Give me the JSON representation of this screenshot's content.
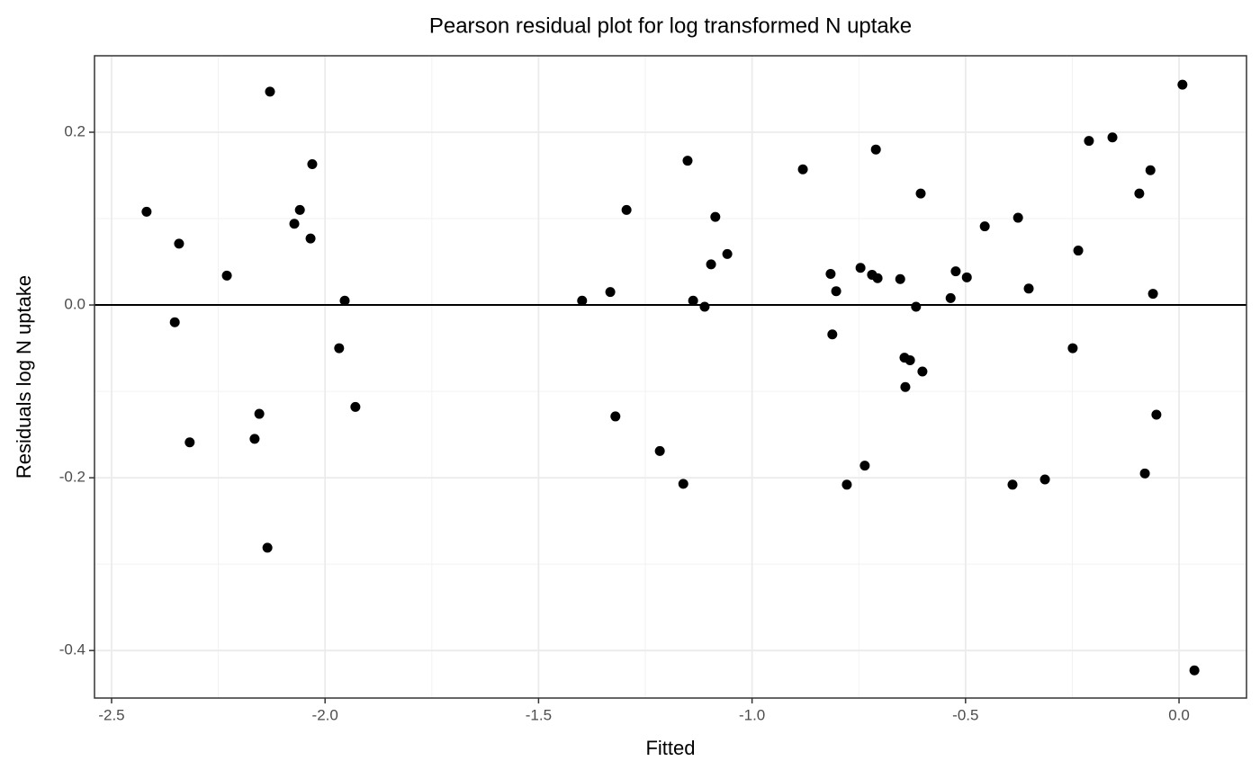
{
  "chart_data": {
    "type": "scatter",
    "title": "Pearson residual plot for log transformed N uptake",
    "x_label": "Fitted",
    "y_label": "Residuals log N uptake",
    "color": "#000000",
    "grid": true,
    "hline": 0,
    "xlim": [
      -2.54,
      0.158
    ],
    "ylim": [
      -0.455,
      0.2885
    ],
    "xticks": [
      {
        "value": -2.5,
        "label": "-2.5"
      },
      {
        "value": -2.0,
        "label": "-2.0"
      },
      {
        "value": -1.5,
        "label": "-1.5"
      },
      {
        "value": -1.0,
        "label": "-1.0"
      },
      {
        "value": -0.5,
        "label": "-0.5"
      },
      {
        "value": 0,
        "label": "0.0"
      }
    ],
    "yticks": [
      -0.4,
      -0.2,
      {
        "value": 0,
        "label": "0.0"
      },
      0.2
    ],
    "x": [
      -2.418,
      -2.342,
      -2.352,
      -2.317,
      -2.23,
      -2.129,
      -2.135,
      -2.165,
      -2.154,
      -2.072,
      -2.059,
      -2.03,
      -2.034,
      -1.954,
      -1.967,
      -1.929,
      -1.398,
      -1.332,
      -1.32,
      -1.294,
      -1.216,
      -1.161,
      -1.151,
      -1.138,
      -1.111,
      -1.096,
      -1.086,
      -1.058,
      -0.881,
      -0.816,
      -0.803,
      -0.812,
      -0.778,
      -0.746,
      -0.736,
      -0.719,
      -0.706,
      -0.71,
      -0.653,
      -0.643,
      -0.63,
      -0.641,
      -0.616,
      -0.605,
      -0.601,
      -0.535,
      -0.523,
      -0.497,
      -0.455,
      -0.39,
      -0.377,
      -0.352,
      -0.314,
      -0.249,
      -0.236,
      -0.211,
      -0.156,
      -0.093,
      -0.08,
      -0.067,
      -0.053,
      -0.061,
      0.008,
      0.036
    ],
    "values": [
      0.108,
      0.071,
      -0.02,
      -0.159,
      0.034,
      0.247,
      -0.281,
      -0.155,
      -0.126,
      0.094,
      0.11,
      0.163,
      0.077,
      0.005,
      -0.05,
      -0.118,
      0.005,
      0.015,
      -0.129,
      0.11,
      -0.169,
      -0.207,
      0.167,
      0.005,
      -0.002,
      0.047,
      0.102,
      0.059,
      0.157,
      0.036,
      0.016,
      -0.034,
      -0.208,
      0.043,
      -0.186,
      0.035,
      0.031,
      0.18,
      0.03,
      -0.061,
      -0.064,
      -0.095,
      -0.002,
      0.129,
      -0.077,
      0.008,
      0.039,
      0.032,
      0.091,
      -0.208,
      0.101,
      0.019,
      -0.202,
      -0.05,
      0.063,
      0.19,
      0.194,
      0.129,
      -0.195,
      0.156,
      -0.127,
      0.013,
      0.255,
      -0.423
    ]
  }
}
